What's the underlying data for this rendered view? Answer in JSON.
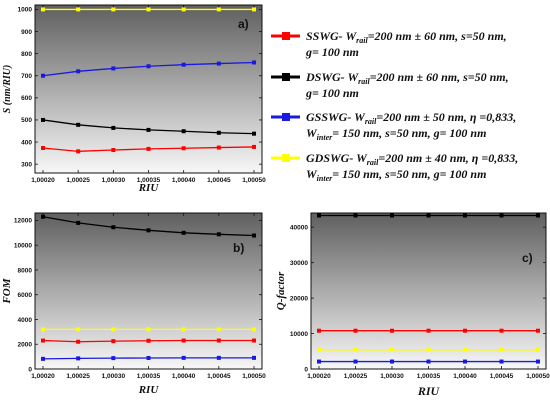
{
  "chart_data": [
    {
      "type": "line",
      "panel_label": "a)",
      "xlabel": "RIU",
      "ylabel": "S (nm/RIU)",
      "x": [
        1.0002,
        1.00025,
        1.0003,
        1.00035,
        1.0004,
        1.00045,
        1.0005
      ],
      "xticks": [
        "1,00020",
        "1,00025",
        "1,00030",
        "1,00035",
        "1,00040",
        "1,00045",
        "1,00050"
      ],
      "ylim": [
        260,
        1020
      ],
      "yticks": [
        300,
        400,
        500,
        600,
        700,
        800,
        900,
        1000
      ],
      "series": [
        {
          "color": "#ff0000",
          "values": [
            373,
            358,
            364,
            369,
            372,
            375,
            378
          ]
        },
        {
          "color": "#000000",
          "values": [
            500,
            478,
            464,
            455,
            449,
            442,
            438
          ]
        },
        {
          "color": "#1a1adf",
          "values": [
            700,
            720,
            733,
            743,
            750,
            755,
            760
          ]
        },
        {
          "color": "#ffff00",
          "values": [
            1000,
            1000,
            1000,
            1000,
            1000,
            1000,
            1000
          ]
        }
      ]
    },
    {
      "type": "line",
      "panel_label": "b)",
      "xlabel": "RIU",
      "ylabel": "FOM",
      "x": [
        1.0002,
        1.00025,
        1.0003,
        1.00035,
        1.0004,
        1.00045,
        1.0005
      ],
      "xticks": [
        "1,00020",
        "1,00025",
        "1,00030",
        "1,00035",
        "1,00040",
        "1,00045",
        "1,00050"
      ],
      "ylim": [
        0,
        12600
      ],
      "yticks": [
        0,
        2000,
        4000,
        6000,
        8000,
        10000,
        12000
      ],
      "series": [
        {
          "color": "#ff0000",
          "values": [
            2300,
            2200,
            2250,
            2280,
            2300,
            2300,
            2300
          ]
        },
        {
          "color": "#000000",
          "values": [
            12300,
            11800,
            11450,
            11200,
            11000,
            10880,
            10780
          ]
        },
        {
          "color": "#1a1adf",
          "values": [
            820,
            860,
            880,
            890,
            900,
            900,
            900
          ]
        },
        {
          "color": "#ffff00",
          "values": [
            3200,
            3200,
            3200,
            3200,
            3200,
            3200,
            3200
          ]
        }
      ]
    },
    {
      "type": "line",
      "panel_label": "c)",
      "xlabel": "RIU",
      "ylabel": "Q-factor",
      "x": [
        1.0002,
        1.00025,
        1.0003,
        1.00035,
        1.0004,
        1.00045,
        1.0005
      ],
      "xticks": [
        "1,00020",
        "1,00025",
        "1,00030",
        "1,00035",
        "1,00040",
        "1,00045",
        "1,00050"
      ],
      "ylim": [
        0,
        44000
      ],
      "yticks": [
        0,
        10000,
        20000,
        30000,
        40000
      ],
      "series": [
        {
          "color": "#ff0000",
          "values": [
            10800,
            10800,
            10800,
            10800,
            10800,
            10800,
            10800
          ]
        },
        {
          "color": "#000000",
          "values": [
            43300,
            43300,
            43300,
            43300,
            43300,
            43300,
            43300
          ]
        },
        {
          "color": "#1a1adf",
          "values": [
            2100,
            2100,
            2100,
            2100,
            2100,
            2100,
            2100
          ]
        },
        {
          "color": "#ffff00",
          "values": [
            5400,
            5400,
            5400,
            5400,
            5400,
            5400,
            5400
          ]
        }
      ]
    }
  ],
  "legend": [
    {
      "color": "#ff0000",
      "parts": [
        {
          "t": "SSWG- W"
        },
        {
          "t": "rail",
          "sub": true
        },
        {
          "t": "=200 nm ± 60 nm, s=50 nm,"
        }
      ],
      "line2": [
        {
          "t": "g= 100 nm"
        }
      ]
    },
    {
      "color": "#000000",
      "parts": [
        {
          "t": "DSWG- W"
        },
        {
          "t": "rail",
          "sub": true
        },
        {
          "t": "=200 nm ± 60 nm, s=50 nm,"
        }
      ],
      "line2": [
        {
          "t": "g= 100 nm"
        }
      ]
    },
    {
      "color": "#1a1adf",
      "parts": [
        {
          "t": "GSSWG- W"
        },
        {
          "t": "rail",
          "sub": true
        },
        {
          "t": "=200 nm ± 50 nm, η =0,833,"
        }
      ],
      "line2": [
        {
          "t": "W"
        },
        {
          "t": "inter",
          "sub": true
        },
        {
          "t": "= 150 nm, s=50 nm, g= 100 nm"
        }
      ]
    },
    {
      "color": "#ffff00",
      "parts": [
        {
          "t": "GDSWG- W"
        },
        {
          "t": "rail",
          "sub": true
        },
        {
          "t": "=200 nm ± 40 nm, η =0,833,"
        }
      ],
      "line2": [
        {
          "t": "W"
        },
        {
          "t": "inter",
          "sub": true
        },
        {
          "t": "= 150 nm, s=50 nm, g= 100 nm"
        }
      ]
    }
  ]
}
